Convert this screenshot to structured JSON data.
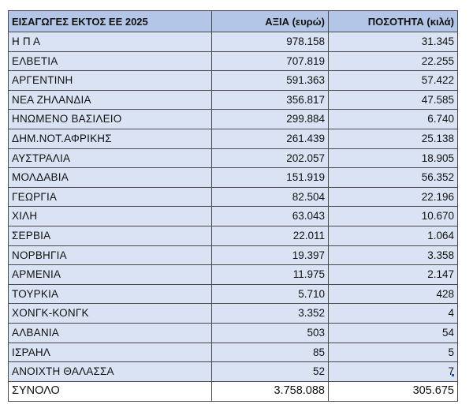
{
  "table": {
    "headers": {
      "country": "ΕΙΣΑΓΩΓΕΣ ΕΚΤΟΣ ΕΕ 2025",
      "value": "ΑΞΙΑ (ευρώ)",
      "quantity": "ΠΟΣΟΤΗΤΑ (κιλά)"
    },
    "rows": [
      {
        "country": "Η Π Α",
        "value": "978.158",
        "quantity": "31.345"
      },
      {
        "country": "ΕΛΒΕΤΙΑ",
        "value": "707.819",
        "quantity": "22.255"
      },
      {
        "country": "ΑΡΓΕΝΤΙΝΗ",
        "value": "591.363",
        "quantity": "57.422"
      },
      {
        "country": "ΝΕΑ ΖΗΛΑΝΔΙΑ",
        "value": "356.817",
        "quantity": "47.585"
      },
      {
        "country": "ΗΝΩΜΕΝΟ ΒΑΣΙΛΕΙΟ",
        "value": "299.884",
        "quantity": "6.740"
      },
      {
        "country": "ΔΗΜ.ΝΟΤ.ΑΦΡΙΚΗΣ",
        "value": "261.439",
        "quantity": "25.138"
      },
      {
        "country": "ΑΥΣΤΡΑΛΙΑ",
        "value": "202.057",
        "quantity": "18.905"
      },
      {
        "country": "ΜΟΛΔΑΒΙΑ",
        "value": "151.919",
        "quantity": "56.352"
      },
      {
        "country": "ΓΕΩΡΓΙΑ",
        "value": "82.504",
        "quantity": "22.196"
      },
      {
        "country": "ΧΙΛΗ",
        "value": "63.043",
        "quantity": "10.670"
      },
      {
        "country": "ΣΕΡΒΙΑ",
        "value": "22.011",
        "quantity": "1.064"
      },
      {
        "country": "ΝΟΡΒΗΓΙΑ",
        "value": "19.397",
        "quantity": "3.358"
      },
      {
        "country": "ΑΡΜΕΝΙΑ",
        "value": "11.975",
        "quantity": "2.147"
      },
      {
        "country": "ΤΟΥΡΚΙΑ",
        "value": "5.710",
        "quantity": "428"
      },
      {
        "country": "ΧΟΝΓΚ-ΚΟΝΓΚ",
        "value": "3.352",
        "quantity": "4"
      },
      {
        "country": "ΑΛΒΑΝΙΑ",
        "value": "503",
        "quantity": "54"
      },
      {
        "country": "ΙΣΡΑΗΛ",
        "value": "85",
        "quantity": "5"
      },
      {
        "country": "ΑΝΟΙΧΤΗ ΘΑΛΑΣΣΑ",
        "value": "52",
        "quantity": "7"
      }
    ],
    "total": {
      "label": "ΣΥΝΟΛΟ",
      "value": "3.758.088",
      "quantity": "305.675"
    }
  },
  "colors": {
    "header_bg": "#b4c6e7",
    "row_bg": "#dae3f3",
    "border": "#4a4a4a"
  }
}
